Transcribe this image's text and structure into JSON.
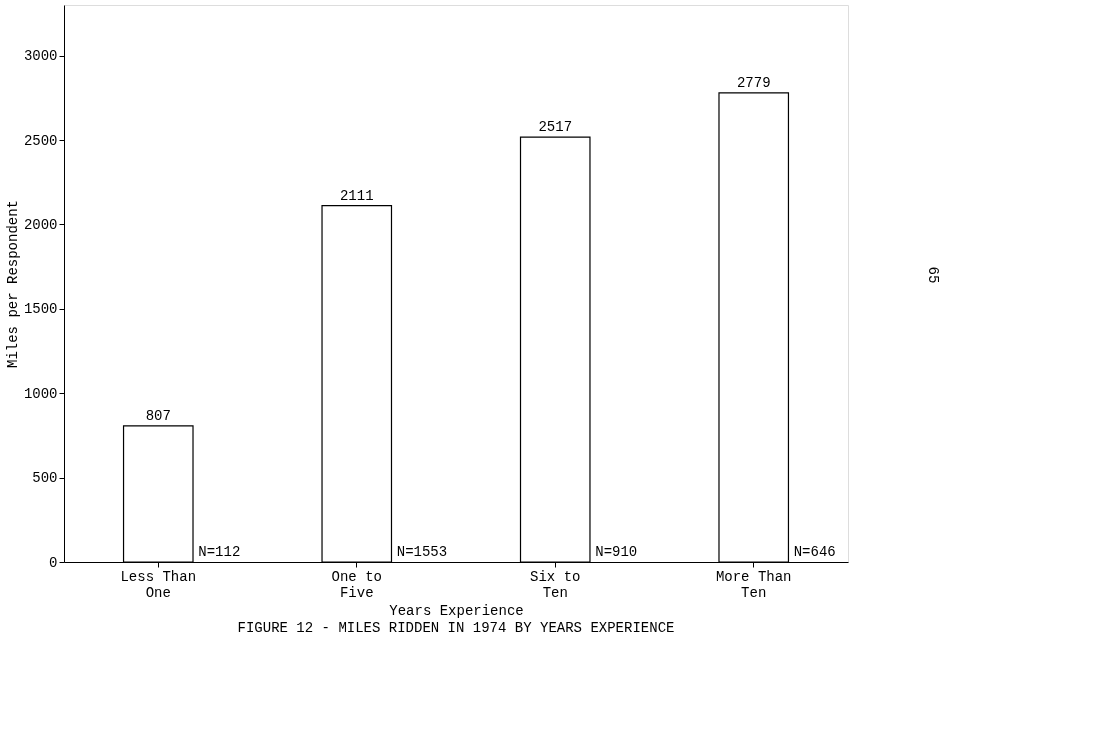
{
  "chart_data": {
    "type": "bar",
    "title": "FIGURE 12 - MILES RIDDEN IN 1974 BY YEARS EXPERIENCE",
    "xlabel": "Years Experience",
    "ylabel": "Miles per Respondent",
    "categories": [
      "Less Than One",
      "One to Five",
      "Six to Ten",
      "More Than Ten"
    ],
    "values": [
      807,
      2111,
      2517,
      2779
    ],
    "color": "#ffffff",
    "data_labels": true,
    "ylim": [
      0,
      3300
    ],
    "yticks": [
      0,
      500,
      1000,
      1500,
      2000,
      2500,
      3000
    ],
    "grid": false,
    "annotations": [
      {
        "text": "N=112",
        "x": "Less Than One",
        "y": 0
      },
      {
        "text": "N=1553",
        "x": "One to Five",
        "y": 0
      },
      {
        "text": "N=910",
        "x": "Six to Ten",
        "y": 0
      },
      {
        "text": "N=646",
        "x": "More Than Ten",
        "y": 0
      },
      "65"
    ]
  }
}
